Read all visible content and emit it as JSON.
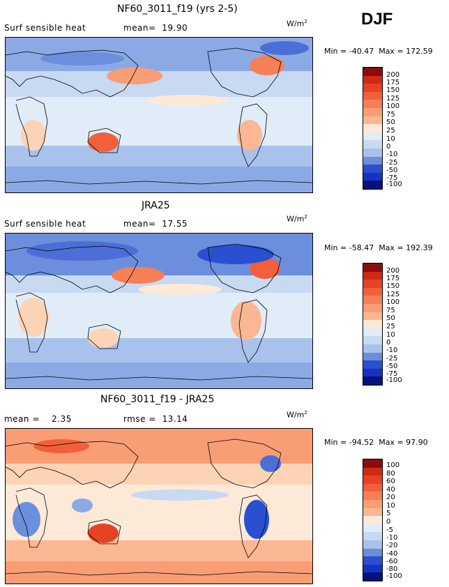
{
  "season": "DJF",
  "colors": {
    "land_outline": "#000000",
    "pos_scale": [
      "#fde9d8",
      "#fcd3b5",
      "#fbb793",
      "#f99d75",
      "#f77f55",
      "#f2603a",
      "#e64224",
      "#d02a14",
      "#b51608",
      "#8c0c0c"
    ],
    "neg_scale": [
      "#e0ecf8",
      "#c8d9f2",
      "#a9c2ec",
      "#8baae5",
      "#6c8fdd",
      "#4b6fd6",
      "#2a4fd0",
      "#1632c4",
      "#0a1fa8",
      "#06137e"
    ]
  },
  "panels": [
    {
      "title": "NF60_3011_f19 (yrs 2-5)",
      "left_label": "Surf sensible heat",
      "stat_label": "mean=",
      "stat_value": "19.90",
      "units": "W/m",
      "units_sup": "2",
      "min_label": "Min =",
      "min_value": "-40.47",
      "max_label": "Max =",
      "max_value": "172.59",
      "colorbar_labels": [
        "200",
        "175",
        "150",
        "125",
        "100",
        "75",
        "50",
        "25",
        "10",
        "0",
        "-10",
        "-25",
        "-50",
        "-75",
        "-100"
      ]
    },
    {
      "title": "JRA25",
      "left_label": "Surf sensible heat",
      "stat_label": "mean=",
      "stat_value": "17.55",
      "units": "W/m",
      "units_sup": "2",
      "min_label": "Min =",
      "min_value": "-58.47",
      "max_label": "Max =",
      "max_value": "192.39",
      "colorbar_labels": [
        "200",
        "175",
        "150",
        "125",
        "100",
        "75",
        "50",
        "25",
        "10",
        "0",
        "-10",
        "-25",
        "-50",
        "-75",
        "-100"
      ]
    },
    {
      "title": "NF60_3011_f19 - JRA25",
      "left_label": "mean =",
      "left_value": "2.35",
      "stat_label": "rmse =",
      "stat_value": "13.14",
      "units": "W/m",
      "units_sup": "2",
      "min_label": "Min =",
      "min_value": "-94.52",
      "max_label": "Max =",
      "max_value": "97.90",
      "colorbar_labels": [
        "100",
        "80",
        "60",
        "40",
        "20",
        "10",
        "5",
        "0",
        "-5",
        "-10",
        "-20",
        "-40",
        "-60",
        "-80",
        "-100"
      ]
    }
  ]
}
